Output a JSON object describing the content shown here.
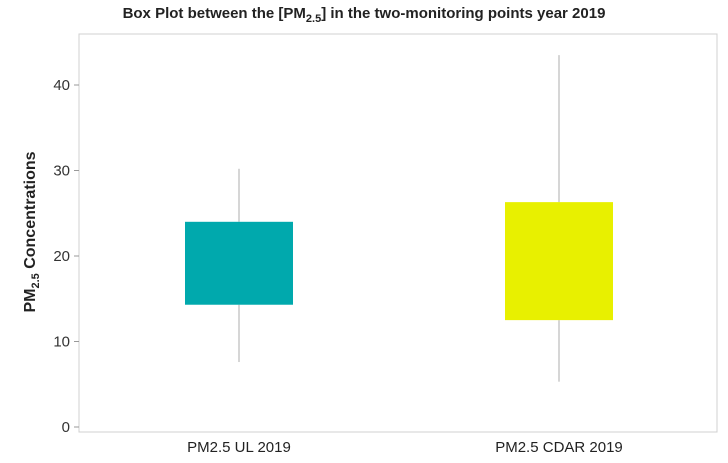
{
  "chart_data": {
    "type": "box",
    "title_prefix": "Box Plot between the [PM",
    "title_sub": "2.5",
    "title_suffix": "] in the two-monitoring points year 2019",
    "ylabel_prefix": "PM",
    "ylabel_sub": "2.5",
    "ylabel_suffix": " Concentrations",
    "xlabel": "",
    "ylim": [
      0,
      45
    ],
    "yticks": [
      0,
      10,
      20,
      30,
      40
    ],
    "grid": false,
    "categories": [
      "PM2.5 UL 2019",
      "PM2.5 CDAR 2019"
    ],
    "boxes": [
      {
        "category": "PM2.5 UL 2019",
        "whisker_low": 7.6,
        "q1": 14.3,
        "q3": 24.0,
        "whisker_high": 30.2,
        "color": "#00A9AD"
      },
      {
        "category": "PM2.5 CDAR 2019",
        "whisker_low": 5.3,
        "q1": 12.5,
        "q3": 26.3,
        "whisker_high": 43.5,
        "color": "#E8F000"
      }
    ]
  }
}
